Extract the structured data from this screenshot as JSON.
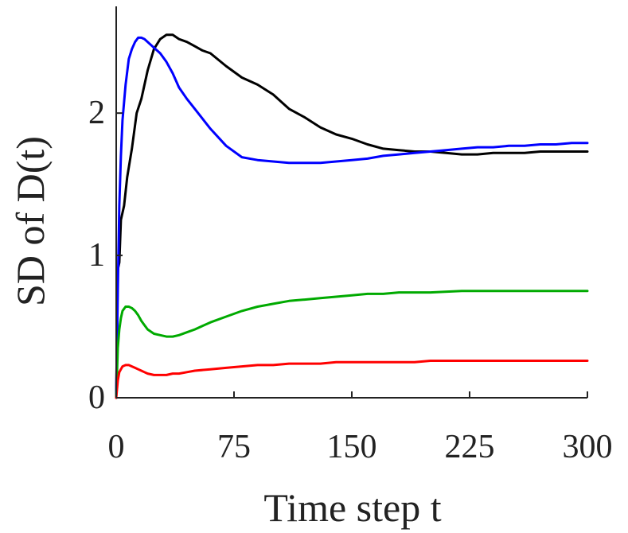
{
  "chart_data": {
    "type": "line",
    "title": "",
    "xlabel": "Time step t",
    "ylabel": "SD of D(t)",
    "xlim": [
      0,
      300
    ],
    "ylim": [
      0,
      2.75
    ],
    "grid": false,
    "legend": "none",
    "xticks": [
      0,
      75,
      150,
      225,
      300
    ],
    "xtick_labels": [
      "0",
      "75",
      "150",
      "225",
      "300"
    ],
    "yticks": [
      0,
      1,
      2
    ],
    "ytick_labels": [
      "0",
      "1",
      "2"
    ],
    "series": [
      {
        "color": "#000000",
        "x": [
          0,
          1,
          2,
          3,
          5,
          7,
          10,
          13,
          16,
          20,
          24,
          28,
          32,
          36,
          40,
          45,
          50,
          55,
          60,
          70,
          80,
          90,
          100,
          110,
          120,
          130,
          140,
          150,
          160,
          170,
          180,
          190,
          200,
          210,
          220,
          230,
          240,
          250,
          260,
          270,
          280,
          290,
          300
        ],
        "y": [
          0,
          0.9,
          0.95,
          1.25,
          1.35,
          1.55,
          1.75,
          2.0,
          2.1,
          2.3,
          2.45,
          2.52,
          2.55,
          2.55,
          2.52,
          2.5,
          2.47,
          2.44,
          2.42,
          2.33,
          2.25,
          2.2,
          2.13,
          2.03,
          1.97,
          1.9,
          1.85,
          1.82,
          1.78,
          1.75,
          1.74,
          1.73,
          1.73,
          1.72,
          1.71,
          1.71,
          1.72,
          1.72,
          1.72,
          1.73,
          1.73,
          1.73,
          1.73
        ]
      },
      {
        "color": "#0000ff",
        "x": [
          0,
          1,
          2,
          3,
          4,
          6,
          8,
          10,
          12,
          14,
          16,
          18,
          20,
          22,
          24,
          28,
          32,
          36,
          40,
          45,
          50,
          60,
          70,
          80,
          90,
          100,
          110,
          120,
          130,
          140,
          150,
          160,
          170,
          180,
          190,
          200,
          210,
          220,
          230,
          240,
          250,
          260,
          270,
          280,
          290,
          300
        ],
        "y": [
          0,
          0.75,
          1.35,
          1.7,
          1.95,
          2.2,
          2.38,
          2.45,
          2.5,
          2.53,
          2.53,
          2.52,
          2.5,
          2.48,
          2.46,
          2.42,
          2.36,
          2.28,
          2.18,
          2.1,
          2.03,
          1.89,
          1.77,
          1.69,
          1.67,
          1.66,
          1.65,
          1.65,
          1.65,
          1.66,
          1.67,
          1.68,
          1.7,
          1.71,
          1.72,
          1.73,
          1.74,
          1.75,
          1.76,
          1.76,
          1.77,
          1.77,
          1.78,
          1.78,
          1.79,
          1.79
        ]
      },
      {
        "color": "#00aa00",
        "x": [
          0,
          1,
          2,
          3,
          4,
          6,
          8,
          10,
          12,
          14,
          16,
          18,
          20,
          24,
          28,
          32,
          36,
          40,
          45,
          50,
          60,
          70,
          80,
          90,
          100,
          110,
          120,
          130,
          140,
          150,
          160,
          170,
          180,
          190,
          200,
          220,
          240,
          260,
          280,
          300
        ],
        "y": [
          0,
          0.35,
          0.48,
          0.56,
          0.61,
          0.64,
          0.64,
          0.63,
          0.61,
          0.58,
          0.54,
          0.51,
          0.48,
          0.45,
          0.44,
          0.43,
          0.43,
          0.44,
          0.46,
          0.48,
          0.53,
          0.57,
          0.61,
          0.64,
          0.66,
          0.68,
          0.69,
          0.7,
          0.71,
          0.72,
          0.73,
          0.73,
          0.74,
          0.74,
          0.74,
          0.75,
          0.75,
          0.75,
          0.75,
          0.75
        ]
      },
      {
        "color": "#ff0000",
        "x": [
          0,
          1,
          2,
          3,
          4,
          6,
          8,
          10,
          12,
          14,
          16,
          18,
          20,
          24,
          28,
          32,
          36,
          40,
          45,
          50,
          60,
          70,
          80,
          90,
          100,
          110,
          120,
          130,
          140,
          150,
          160,
          170,
          180,
          190,
          200,
          220,
          240,
          260,
          280,
          300
        ],
        "y": [
          0,
          0.12,
          0.18,
          0.2,
          0.22,
          0.23,
          0.23,
          0.22,
          0.21,
          0.2,
          0.19,
          0.18,
          0.17,
          0.16,
          0.16,
          0.16,
          0.17,
          0.17,
          0.18,
          0.19,
          0.2,
          0.21,
          0.22,
          0.23,
          0.23,
          0.24,
          0.24,
          0.24,
          0.25,
          0.25,
          0.25,
          0.25,
          0.25,
          0.25,
          0.26,
          0.26,
          0.26,
          0.26,
          0.26,
          0.26
        ]
      }
    ]
  }
}
